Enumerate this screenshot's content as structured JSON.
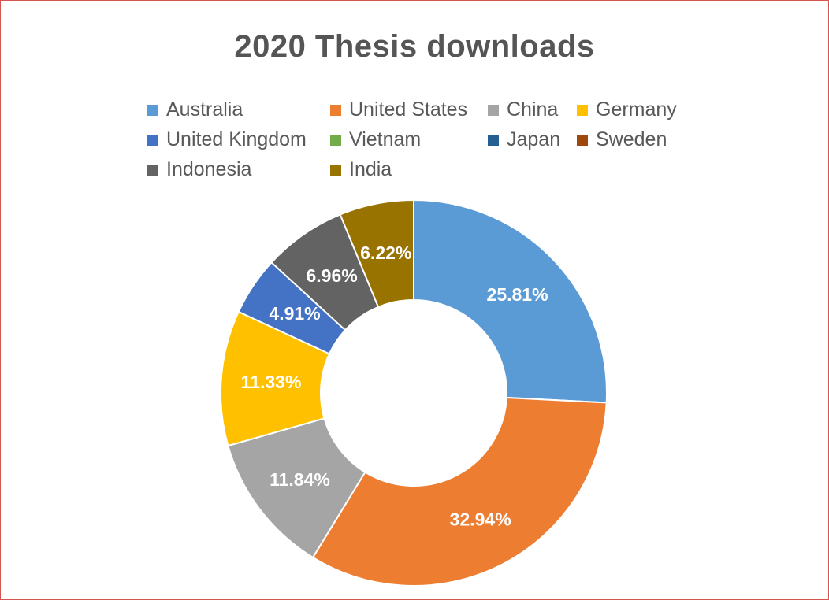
{
  "chart_data": {
    "type": "pie",
    "variant": "donut",
    "title": "2020 Thesis downloads",
    "legend_position": "top",
    "series": [
      {
        "name": "Australia",
        "value": 25.81,
        "label": "25.81%",
        "color": "#5b9bd5"
      },
      {
        "name": "United States",
        "value": 32.94,
        "label": "32.94%",
        "color": "#ed7d31"
      },
      {
        "name": "China",
        "value": 11.84,
        "label": "11.84%",
        "color": "#a5a5a5"
      },
      {
        "name": "Germany",
        "value": 11.33,
        "label": "11.33%",
        "color": "#ffc000"
      },
      {
        "name": "United Kingdom",
        "value": 4.91,
        "label": "4.91%",
        "color": "#4472c4"
      },
      {
        "name": "Vietnam",
        "value": 0,
        "label": "",
        "color": "#70ad47"
      },
      {
        "name": "Japan",
        "value": 0,
        "label": "",
        "color": "#255e91"
      },
      {
        "name": "Sweden",
        "value": 0,
        "label": "",
        "color": "#9e480e"
      },
      {
        "name": "Indonesia",
        "value": 6.96,
        "label": "6.96%",
        "color": "#636363"
      },
      {
        "name": "India",
        "value": 6.22,
        "label": "6.22%",
        "color": "#997300"
      }
    ]
  }
}
